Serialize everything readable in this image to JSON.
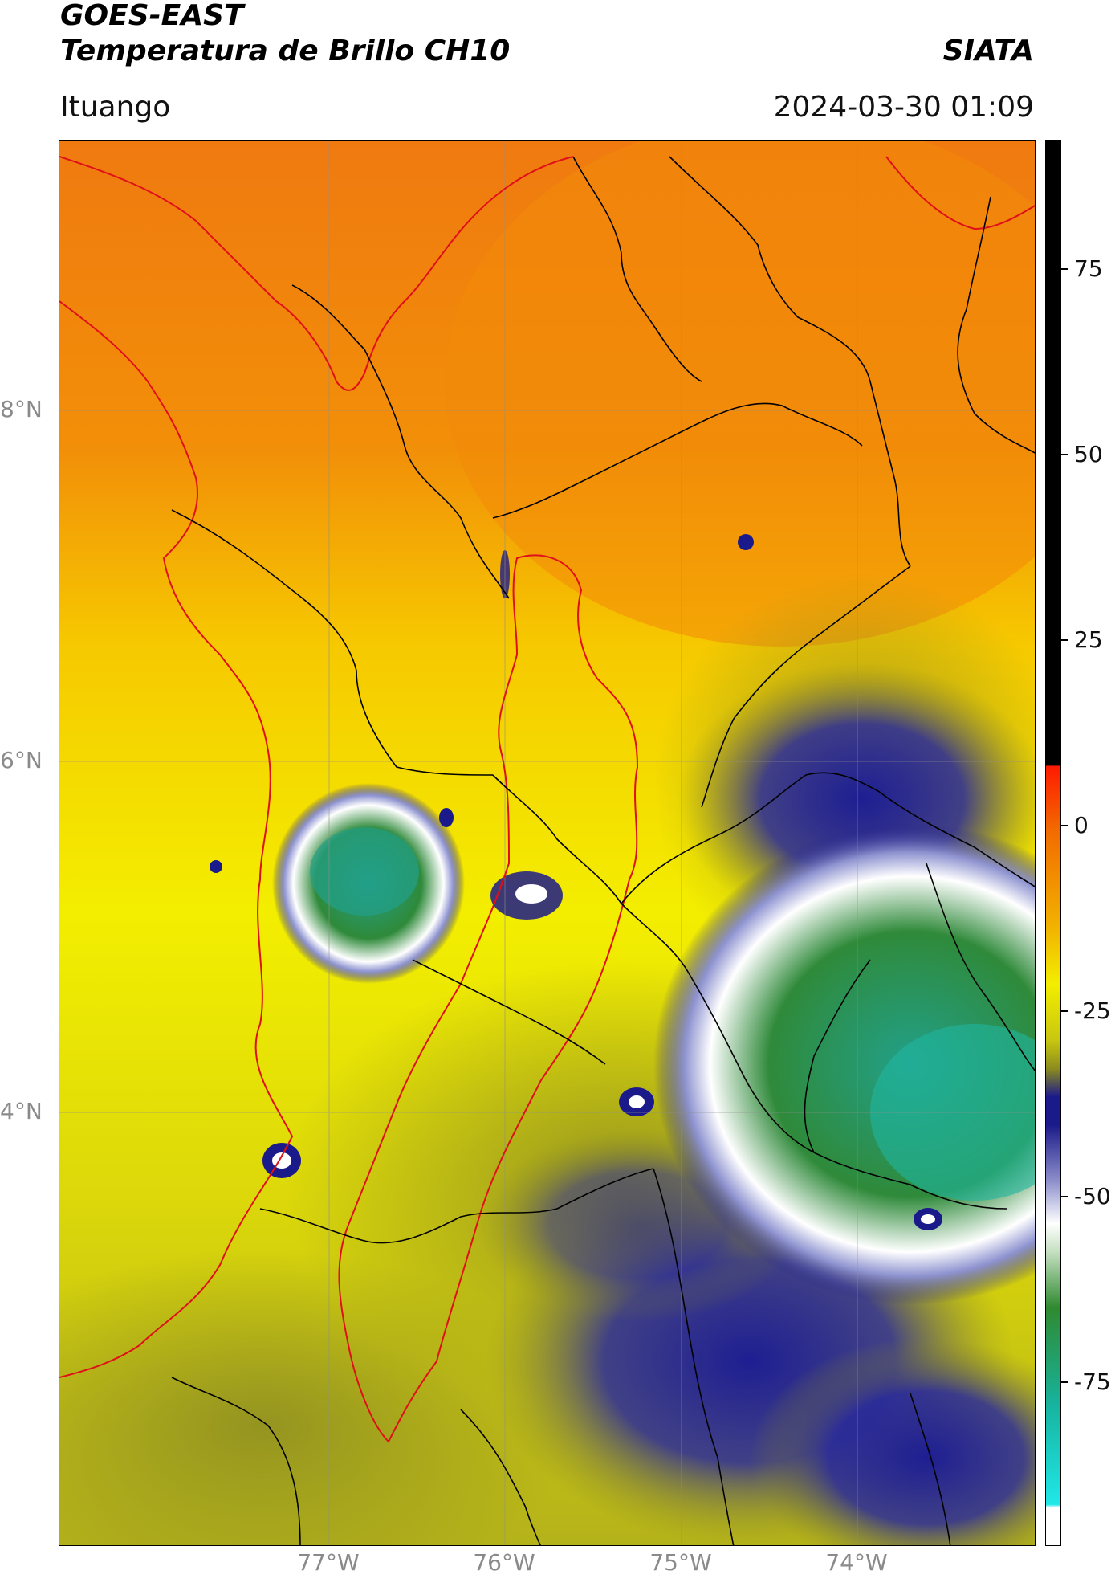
{
  "header": {
    "satellite": "GOES-EAST",
    "product": "Temperatura de Brillo CH10",
    "brand": "SIATA",
    "location": "Ituango",
    "datetime": "2024-03-30 01:09"
  },
  "map": {
    "lat_labels": [
      "8°N",
      "6°N",
      "4°N"
    ],
    "lon_labels": [
      "77°W",
      "76°W",
      "75°W",
      "74°W"
    ],
    "lat_values": [
      8,
      6,
      4
    ],
    "lon_values": [
      -77,
      -76,
      -75,
      -74
    ],
    "border_colors": {
      "national": "#e0101a",
      "department": "#000000"
    }
  },
  "colorbar": {
    "tick_labels": [
      "75",
      "50",
      "25",
      "0",
      "-25",
      "-50",
      "-75"
    ],
    "tick_values": [
      75,
      50,
      25,
      0,
      -25,
      -50,
      -75
    ],
    "range": [
      -92,
      92
    ],
    "colors": {
      "black": "#000000",
      "red": "#ff1a00",
      "orange": "#f28a00",
      "yellow": "#f3ee00",
      "olive": "#8c8c1e",
      "navy": "#1b1a8a",
      "white": "#ffffff",
      "green": "#2f8a30",
      "teal": "#17b4a0",
      "cyan": "#20e8e8"
    }
  }
}
